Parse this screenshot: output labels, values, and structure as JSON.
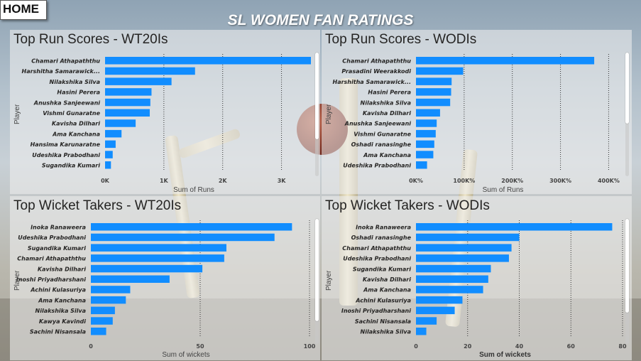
{
  "home_label": "HOME",
  "title": "SL WOMEN FAN RATINGS",
  "bar_color": "#118DFF",
  "panels": [
    {
      "title": "Top Run Scores - WT20Is",
      "y_axis_title": "Player",
      "x_axis_title": "Sum of Runs"
    },
    {
      "title": "Top Run Scores - WODIs",
      "y_axis_title": "Player",
      "x_axis_title": "Sum of Runs"
    },
    {
      "title": "Top Wicket Takers - WT20Is",
      "y_axis_title": "Player",
      "x_axis_title": "Sum of wickets"
    },
    {
      "title": "Top Wicket Takers - WODIs",
      "y_axis_title": "Player",
      "x_axis_title": "Sum of wickets"
    }
  ],
  "chart_data": [
    {
      "type": "bar",
      "orientation": "horizontal",
      "title": "Top Run Scores - WT20Is",
      "ylabel": "Player",
      "xlabel": "Sum of Runs",
      "categories": [
        "Chamari Athapaththu",
        "Harshitha Samarawick...",
        "Nilakshika Silva",
        "Hasini Perera",
        "Anushka Sanjeewani",
        "Vishmi Gunaratne",
        "Kavisha Dilhari",
        "Ama Kanchana",
        "Hansima Karunaratne",
        "Udeshika Prabodhani",
        "Sugandika Kumari"
      ],
      "values": [
        3500,
        1530,
        1130,
        790,
        770,
        760,
        520,
        280,
        180,
        130,
        100
      ],
      "xlim": [
        0,
        3500
      ],
      "ticks": [
        0,
        1000,
        2000,
        3000
      ],
      "tick_labels": [
        "0K",
        "1K",
        "2K",
        "3K"
      ],
      "grid": true
    },
    {
      "type": "bar",
      "orientation": "horizontal",
      "title": "Top Run Scores - WODIs",
      "ylabel": "Player",
      "xlabel": "Sum of Runs",
      "categories": [
        "Chamari Athapaththu",
        "Prasadini Weerakkodi",
        "Harshitha Samarawick...",
        "Hasini Perera",
        "Nilakshika Silva",
        "Kavisha Dilhari",
        "Anushka Sanjeewani",
        "Vishmi Gunaratne",
        "Oshadi ranasinghe",
        "Ama Kanchana",
        "Udeshika Prabodhani"
      ],
      "values": [
        370,
        98,
        74,
        73,
        71,
        50,
        43,
        41,
        38,
        36,
        23
      ],
      "unit": "%",
      "xlim": [
        0,
        420
      ],
      "ticks": [
        0,
        100,
        200,
        300,
        400
      ],
      "tick_labels": [
        "0K%",
        "100K%",
        "200K%",
        "300K%",
        "400K%"
      ],
      "grid": true
    },
    {
      "type": "bar",
      "orientation": "horizontal",
      "title": "Top Wicket Takers - WT20Is",
      "ylabel": "Player",
      "xlabel": "Sum of wickets",
      "categories": [
        "Inoka Ranaweera",
        "Udeshika Prabodhani",
        "Sugandika Kumari",
        "Chamari Athapaththu",
        "Kavisha Dilhari",
        "Inoshi Priyadharshani",
        "Achini Kulasuriya",
        "Ama Kanchana",
        "Nilakshika Silva",
        "Kawya Kavindi",
        "Sachini Nisansala"
      ],
      "values": [
        92,
        84,
        62,
        61,
        51,
        36,
        18,
        16,
        11,
        10,
        7
      ],
      "xlim": [
        0,
        100
      ],
      "ticks": [
        0,
        50,
        100
      ],
      "tick_labels": [
        "0",
        "50",
        "100"
      ],
      "grid": true
    },
    {
      "type": "bar",
      "orientation": "horizontal",
      "title": "Top Wicket Takers - WODIs",
      "ylabel": "Player",
      "xlabel": "Sum of wickets",
      "categories": [
        "Inoka Ranaweera",
        "Oshadi ranasinghe",
        "Chamari Athapaththu",
        "Udeshika Prabodhani",
        "Sugandika Kumari",
        "Kavisha Dilhari",
        "Ama Kanchana",
        "Achini Kulasuriya",
        "Inoshi Priyadharshani",
        "Sachini Nisansala",
        "Nilakshika Silva"
      ],
      "values": [
        76,
        40,
        37,
        36,
        29,
        28,
        26,
        18,
        15,
        8,
        4
      ],
      "xlim": [
        0,
        80
      ],
      "ticks": [
        0,
        20,
        40,
        60,
        80
      ],
      "tick_labels": [
        "0",
        "20",
        "40",
        "60",
        "80"
      ],
      "grid": true
    }
  ]
}
